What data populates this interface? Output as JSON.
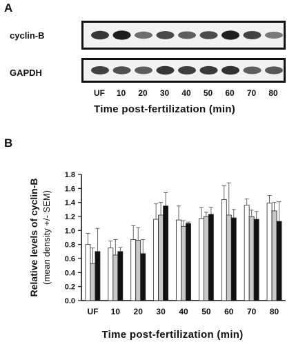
{
  "panel_a": {
    "letter": "A",
    "rows": [
      {
        "label": "cyclin-B",
        "band_intensity": [
          0.8,
          0.92,
          0.55,
          0.72,
          0.62,
          0.7,
          0.9,
          0.74,
          0.5
        ]
      },
      {
        "label": "GAPDH",
        "band_intensity": [
          0.75,
          0.68,
          0.62,
          0.8,
          0.76,
          0.78,
          0.82,
          0.62,
          0.65
        ]
      }
    ],
    "lanes": [
      "UF",
      "10",
      "20",
      "30",
      "40",
      "50",
      "60",
      "70",
      "80"
    ],
    "xlabel": "Time post-fertilization (min)"
  },
  "panel_b": {
    "letter": "B"
  },
  "chart_data": {
    "type": "bar",
    "categories": [
      "UF",
      "10",
      "20",
      "30",
      "40",
      "50",
      "60",
      "70",
      "80"
    ],
    "series": [
      {
        "fill": "#ffffff",
        "values": [
          0.8,
          0.75,
          0.87,
          1.16,
          1.15,
          1.17,
          1.44,
          1.36,
          1.39
        ],
        "errors": [
          0.16,
          0.1,
          0.2,
          0.22,
          0.2,
          0.16,
          0.2,
          0.09,
          0.11
        ]
      },
      {
        "fill": "#c8c8c8",
        "values": [
          0.53,
          0.65,
          0.86,
          1.22,
          1.06,
          1.2,
          1.22,
          1.2,
          1.28
        ],
        "errors": [
          0.22,
          0.22,
          0.18,
          0.18,
          0.08,
          0.06,
          0.46,
          0.09,
          0.12
        ]
      },
      {
        "fill": "#111111",
        "values": [
          0.7,
          0.7,
          0.67,
          1.35,
          1.1,
          1.23,
          1.18,
          1.16,
          1.13
        ],
        "errors": [
          0.33,
          0.06,
          0.2,
          0.19,
          0.02,
          0.1,
          0.12,
          0.11,
          0.28
        ]
      }
    ],
    "ylabel": "Relative levels of cyclin-B",
    "ylabel2": "(mean density +/- SEM)",
    "xlabel": "Time post-fertilization (min)",
    "ylim": [
      0,
      1.8
    ],
    "yticks": [
      "0.0",
      "0.2",
      "0.4",
      "0.6",
      "0.8",
      "1.0",
      "1.2",
      "1.4",
      "1.6",
      "1.8"
    ],
    "grid": false
  }
}
